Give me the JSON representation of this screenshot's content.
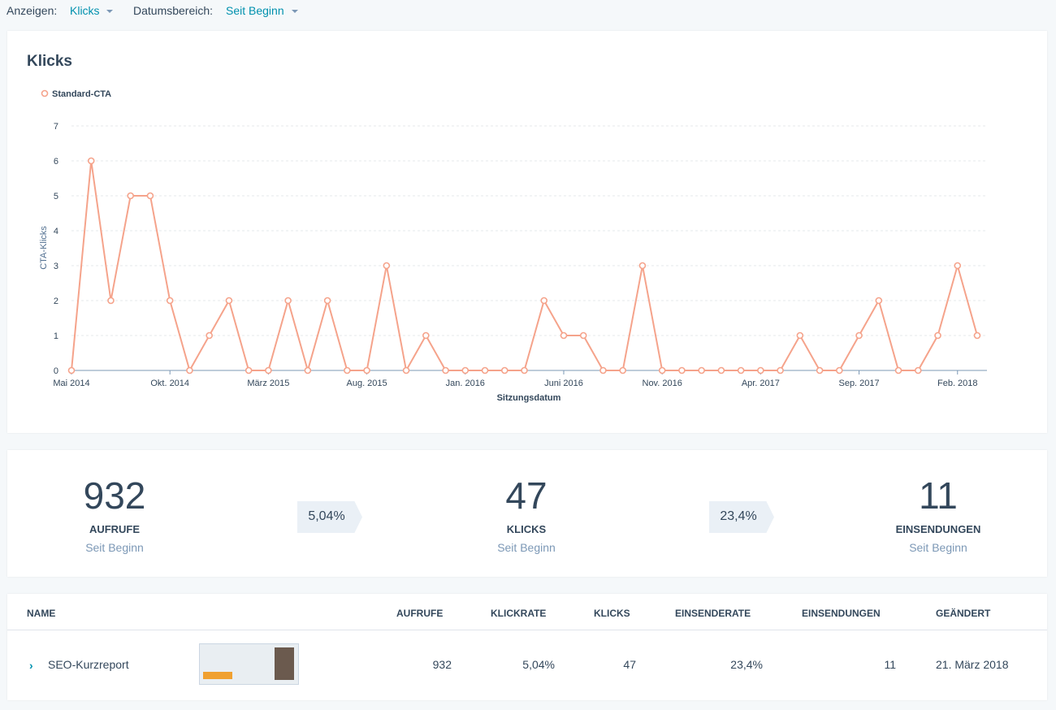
{
  "header": {
    "filters": [
      {
        "label": "Anzeigen:",
        "value": "Klicks"
      },
      {
        "label": "Datumsbereich:",
        "value": "Seit Beginn"
      }
    ]
  },
  "chart_data": {
    "type": "line",
    "title": "Klicks",
    "x_label": "Sitzungsdatum",
    "y_label": "CTA-Klicks",
    "categories": [
      "Mai 2014",
      null,
      null,
      null,
      null,
      "Okt. 2014",
      null,
      null,
      null,
      null,
      "März 2015",
      null,
      null,
      null,
      null,
      "Aug. 2015",
      null,
      null,
      null,
      null,
      "Jan. 2016",
      null,
      null,
      null,
      null,
      "Juni 2016",
      null,
      null,
      null,
      null,
      "Nov. 2016",
      null,
      null,
      null,
      null,
      "Apr. 2017",
      null,
      null,
      null,
      null,
      "Sep. 2017",
      null,
      null,
      null,
      null,
      "Feb. 2018",
      null
    ],
    "series": [
      {
        "name": "Standard-CTA",
        "color": "#f5a38b",
        "values": [
          0,
          6,
          2,
          5,
          5,
          2,
          0,
          1,
          2,
          0,
          0,
          2,
          0,
          2,
          0,
          0,
          3,
          0,
          1,
          0,
          0,
          0,
          0,
          0,
          2,
          1,
          1,
          0,
          0,
          3,
          0,
          0,
          0,
          0,
          0,
          0,
          0,
          1,
          0,
          0,
          1,
          2,
          0,
          0,
          1,
          3,
          1
        ]
      }
    ],
    "ylim": [
      0,
      7
    ],
    "yticks": [
      0,
      1,
      2,
      3,
      4,
      5,
      6,
      7
    ],
    "grid": true,
    "legend": "top-left"
  },
  "stats": [
    {
      "value": "932",
      "label": "AUFRUFE",
      "period": "Seit Beginn"
    },
    {
      "value": "47",
      "label": "KLICKS",
      "period": "Seit Beginn"
    },
    {
      "value": "11",
      "label": "EINSENDUNGEN",
      "period": "Seit Beginn"
    }
  ],
  "rates": [
    "5,04%",
    "23,4%"
  ],
  "table": {
    "columns": [
      "NAME",
      "AUFRUFE",
      "KLICKRATE",
      "KLICKS",
      "EINSENDERATE",
      "EINSENDUNGEN",
      "GEÄNDERT"
    ],
    "rows": [
      [
        "SEO-Kurzreport",
        "932",
        "5,04%",
        "47",
        "23,4%",
        "11",
        "21. März 2018"
      ]
    ]
  }
}
